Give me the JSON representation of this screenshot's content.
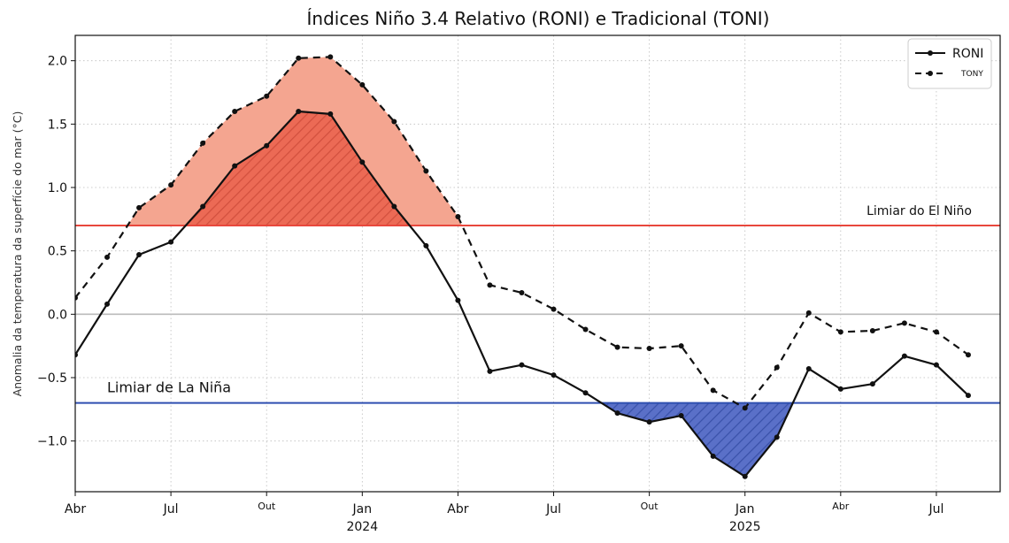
{
  "chart_data": {
    "type": "line",
    "title": "Índices Niño 3.4 Relativo (RONI) e Tradicional (TONI)",
    "ylabel": "Anomalia da temperatura da superfície do mar (°C)",
    "xlabel": "",
    "ylim": [
      -1.4,
      2.2
    ],
    "yticks": [
      {
        "value": 2.0,
        "label": "2.0"
      },
      {
        "value": 1.5,
        "label": "1.5"
      },
      {
        "value": 1.0,
        "label": "1.0"
      },
      {
        "value": 0.5,
        "label": "0.5"
      },
      {
        "value": 0.0,
        "label": "0.0"
      },
      {
        "value": -0.5,
        "label": "−0.5"
      },
      {
        "value": -1.0,
        "label": "−1.0"
      }
    ],
    "xlim": [
      0,
      29
    ],
    "xticks": [
      {
        "index": 0,
        "label": "Abr",
        "small": false
      },
      {
        "index": 3,
        "label": "Jul",
        "small": false
      },
      {
        "index": 6,
        "label": "Out",
        "small": true
      },
      {
        "index": 9,
        "label": "Jan",
        "small": false,
        "year": "2024"
      },
      {
        "index": 12,
        "label": "Abr",
        "small": false
      },
      {
        "index": 15,
        "label": "Jul",
        "small": false
      },
      {
        "index": 18,
        "label": "Out",
        "small": true
      },
      {
        "index": 21,
        "label": "Jan",
        "small": false,
        "year": "2025"
      },
      {
        "index": 24,
        "label": "Abr",
        "small": true
      },
      {
        "index": 27,
        "label": "Jul",
        "small": false
      }
    ],
    "x": [
      0,
      1,
      2,
      3,
      4,
      5,
      6,
      7,
      8,
      9,
      10,
      11,
      12,
      13,
      14,
      15,
      16,
      17,
      18,
      19,
      20,
      21,
      22,
      23,
      24,
      25,
      26,
      27,
      28
    ],
    "series": [
      {
        "name": "RONI",
        "style": "solid",
        "values": [
          -0.32,
          0.08,
          0.47,
          0.57,
          0.85,
          1.17,
          1.33,
          1.6,
          1.58,
          1.2,
          0.85,
          0.54,
          0.11,
          -0.45,
          -0.4,
          -0.48,
          -0.62,
          -0.78,
          -0.85,
          -0.8,
          -1.12,
          -1.28,
          -0.97,
          -0.43,
          -0.59,
          -0.55,
          -0.33,
          -0.4,
          -0.64
        ]
      },
      {
        "name": "TONY",
        "style": "dashed",
        "values": [
          0.13,
          0.45,
          0.84,
          1.02,
          1.35,
          1.6,
          1.72,
          2.02,
          2.03,
          1.81,
          1.52,
          1.13,
          0.77,
          0.23,
          0.17,
          0.04,
          -0.12,
          -0.26,
          -0.27,
          -0.25,
          -0.6,
          -0.74,
          -0.42,
          0.01,
          -0.14,
          -0.13,
          -0.07,
          -0.14,
          -0.32
        ]
      }
    ],
    "thresholds": [
      {
        "name": "el-nino",
        "value": 0.7,
        "label": "Limiar do El Niño",
        "color": "#e8473c"
      },
      {
        "name": "la-nina",
        "value": -0.7,
        "label": "Limiar de La Niña",
        "color": "#2f4fb0"
      }
    ],
    "colors": {
      "warm_fill": "#f4a590",
      "warm_hatch_fill": "#ec6a55",
      "cold_fill": "#5a70c8",
      "zero_line": "#bbbbbb",
      "grid": "#bdbdbd"
    },
    "legend": {
      "position": "top-right",
      "entries": [
        "RONI",
        "TONY"
      ]
    }
  }
}
